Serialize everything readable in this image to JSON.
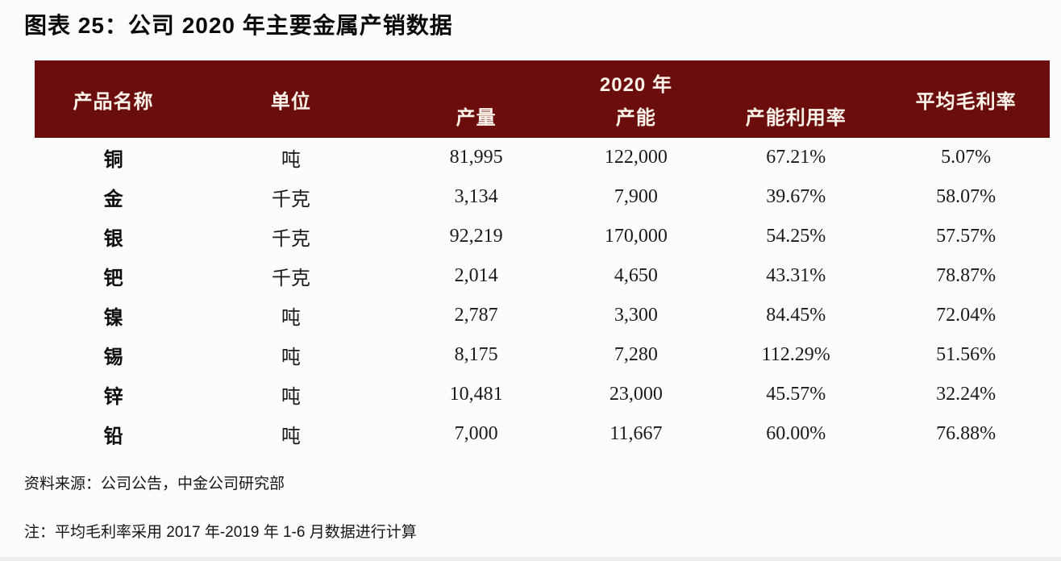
{
  "title": "图表 25：公司 2020 年主要金属产销数据",
  "table": {
    "header": {
      "col_product": "产品名称",
      "col_unit": "单位",
      "group_2020": "2020 年",
      "col_output": "产量",
      "col_capacity": "产能",
      "col_utilization": "产能利用率",
      "col_margin": "平均毛利率"
    },
    "rows": [
      {
        "product": "铜",
        "unit": "吨",
        "output": "81,995",
        "capacity": "122,000",
        "utilization": "67.21%",
        "margin": "5.07%"
      },
      {
        "product": "金",
        "unit": "千克",
        "output": "3,134",
        "capacity": "7,900",
        "utilization": "39.67%",
        "margin": "58.07%"
      },
      {
        "product": "银",
        "unit": "千克",
        "output": "92,219",
        "capacity": "170,000",
        "utilization": "54.25%",
        "margin": "57.57%"
      },
      {
        "product": "钯",
        "unit": "千克",
        "output": "2,014",
        "capacity": "4,650",
        "utilization": "43.31%",
        "margin": "78.87%"
      },
      {
        "product": "镍",
        "unit": "吨",
        "output": "2,787",
        "capacity": "3,300",
        "utilization": "84.45%",
        "margin": "72.04%"
      },
      {
        "product": "锡",
        "unit": "吨",
        "output": "8,175",
        "capacity": "7,280",
        "utilization": "112.29%",
        "margin": "51.56%"
      },
      {
        "product": "锌",
        "unit": "吨",
        "output": "10,481",
        "capacity": "23,000",
        "utilization": "45.57%",
        "margin": "32.24%"
      },
      {
        "product": "铅",
        "unit": "吨",
        "output": "7,000",
        "capacity": "11,667",
        "utilization": "60.00%",
        "margin": "76.88%"
      }
    ]
  },
  "source": "资料来源：公司公告，中金公司研究部",
  "note": "注：平均毛利率采用 2017 年-2019 年 1-6 月数据进行计算",
  "colors": {
    "header_bg": "#6c0d0d",
    "header_text": "#fcf4ea",
    "body_text": "#141414",
    "page_bg": "#fdfcfc"
  }
}
